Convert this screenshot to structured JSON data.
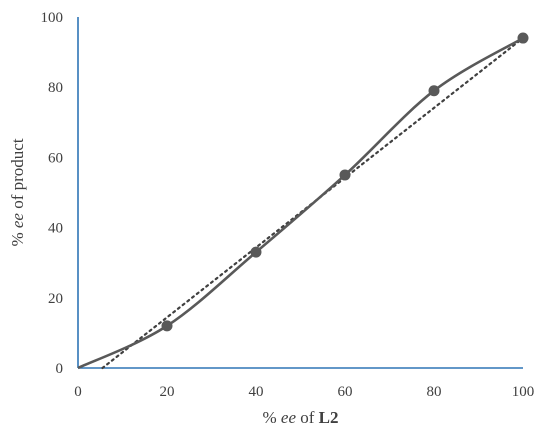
{
  "chart_data": {
    "type": "scatter",
    "title": "",
    "xlabel_parts": [
      {
        "text": "% ",
        "style": "normal"
      },
      {
        "text": "ee",
        "style": "italic"
      },
      {
        "text": " of ",
        "style": "normal"
      },
      {
        "text": "L2",
        "style": "bold"
      }
    ],
    "ylabel_parts": [
      {
        "text": "% ",
        "style": "normal"
      },
      {
        "text": "ee",
        "style": "italic"
      },
      {
        "text": " of product",
        "style": "normal"
      }
    ],
    "xlim": [
      0,
      100
    ],
    "ylim": [
      0,
      100
    ],
    "xticks": [
      0,
      20,
      40,
      60,
      80,
      100
    ],
    "yticks": [
      0,
      20,
      40,
      60,
      80,
      100
    ],
    "grid": false,
    "series": [
      {
        "x": [
          0,
          20,
          40,
          60,
          80,
          100
        ],
        "y": [
          0,
          12,
          33,
          55,
          79,
          94
        ],
        "line": "smooth",
        "markers": [
          false,
          true,
          true,
          true,
          true,
          true
        ],
        "color": "#595959"
      }
    ],
    "trendline": {
      "x": [
        5.5,
        100
      ],
      "y": [
        0,
        94
      ],
      "style": "dotted",
      "color": "#404040"
    },
    "axis_color": "#2e75b6"
  }
}
